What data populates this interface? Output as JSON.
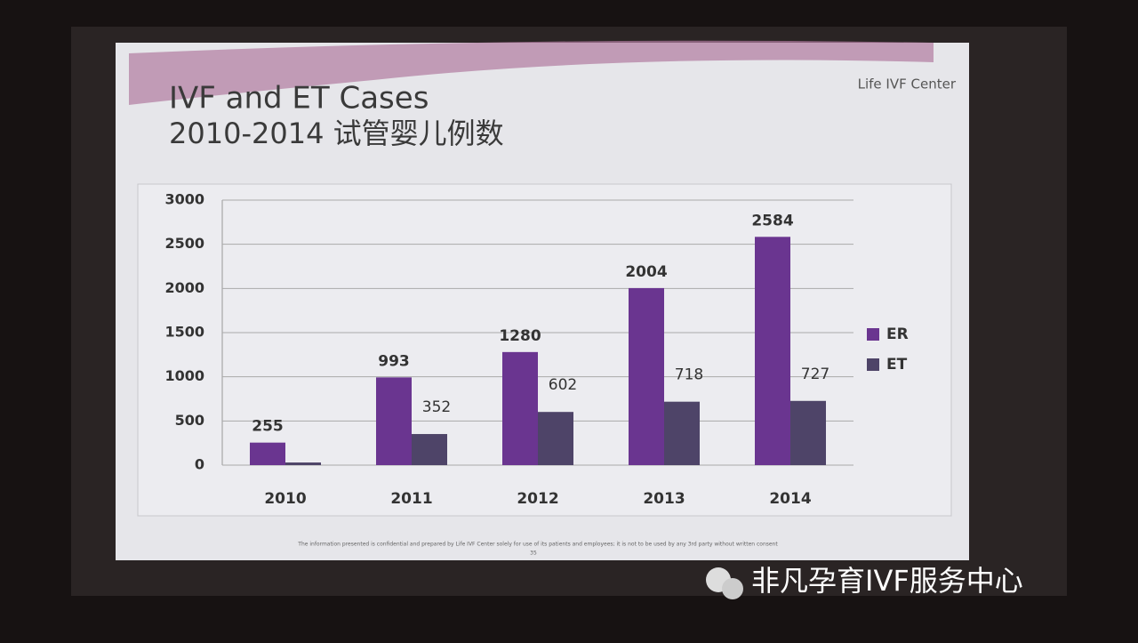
{
  "slide": {
    "title": "IVF and ET Cases",
    "subtitle": "2010-2014 试管婴儿例数",
    "logo": "Life IVF Center",
    "footer": "The information presented is confidential and prepared by Life IVF Center solely for use of its patients and employees; it is not to be used by any 3rd party without written consent",
    "page_number": "35"
  },
  "watermark": "非凡孕育IVF服务中心",
  "chart_data": {
    "type": "bar",
    "categories": [
      "2010",
      "2011",
      "2012",
      "2013",
      "2014"
    ],
    "series": [
      {
        "name": "ER",
        "color": "#6a3590",
        "values": [
          255,
          993,
          1280,
          2004,
          2584
        ]
      },
      {
        "name": "ET",
        "color": "#4e4468",
        "values": [
          30,
          352,
          602,
          718,
          727
        ],
        "value_labels": [
          null,
          "352",
          "602",
          "718",
          "727"
        ]
      }
    ],
    "ylim": [
      0,
      3000
    ],
    "yticks": [
      0,
      500,
      1000,
      1500,
      2000,
      2500,
      3000
    ],
    "grid": true,
    "legend": "right"
  }
}
